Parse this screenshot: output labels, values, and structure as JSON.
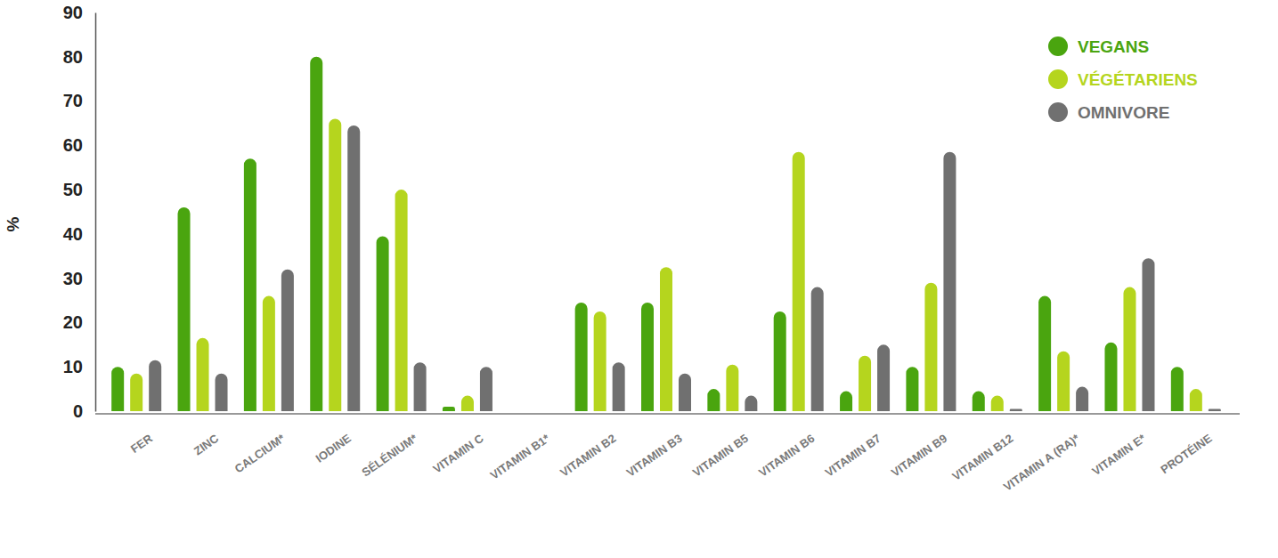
{
  "chart_data": {
    "type": "bar",
    "ylabel": "%",
    "categories": [
      "FER",
      "ZINC",
      "CALCIUM*",
      "IODINE",
      "SÉLÉNIUM*",
      "VITAMIN C",
      "VITAMIN B1*",
      "VITAMIN B2",
      "VITAMIN B3",
      "VITAMIN B5",
      "VITAMIN B6",
      "VITAMIN B7",
      "VITAMIN B9",
      "VITAMIN B12",
      "VITAMIN A (RA)*",
      "VITAMIN E*",
      "PROTÉINE"
    ],
    "series": [
      {
        "name": "VEGANS",
        "color": "#4aa50f",
        "values": [
          10,
          46,
          57,
          80,
          39.5,
          1,
          null,
          24.5,
          24.5,
          5,
          22.5,
          4.5,
          10,
          4.5,
          26,
          15.5,
          10
        ]
      },
      {
        "name": "VÉGÉTARIENS",
        "color": "#b5d51e",
        "values": [
          8.5,
          16.5,
          26,
          66,
          50,
          3.5,
          null,
          22.5,
          32.5,
          10.5,
          58.5,
          12.5,
          29,
          3.5,
          13.5,
          28,
          5
        ]
      },
      {
        "name": "OMNIVORE",
        "color": "#707070",
        "values": [
          11.5,
          8.5,
          32,
          64.5,
          11,
          10,
          null,
          11,
          8.5,
          3.5,
          28,
          15,
          58.5,
          0.5,
          5.5,
          34.5,
          0.5
        ]
      }
    ],
    "ylim": [
      0,
      90
    ],
    "yticks": [
      0,
      10,
      20,
      30,
      40,
      50,
      60,
      70,
      80,
      90
    ],
    "grid": false,
    "legend": "top-right"
  }
}
